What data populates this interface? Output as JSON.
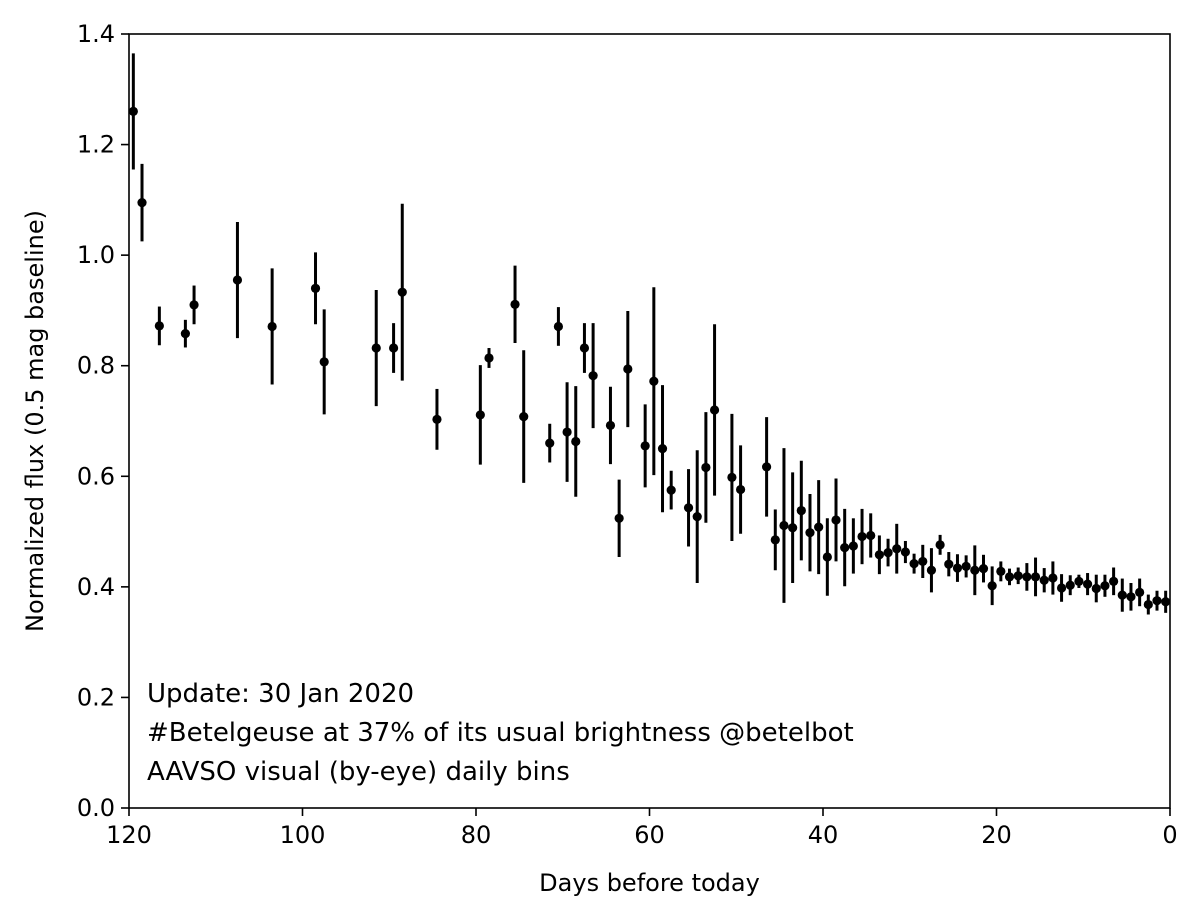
{
  "chart_data": {
    "type": "scatter",
    "title": "",
    "xlabel": "Days before today",
    "ylabel": "Normalized flux (0.5 mag baseline)",
    "xlim": [
      120,
      0
    ],
    "ylim": [
      0.0,
      1.4
    ],
    "xticks": [
      "120",
      "100",
      "80",
      "60",
      "40",
      "20",
      "0"
    ],
    "yticks": [
      "0.0",
      "0.2",
      "0.4",
      "0.6",
      "0.8",
      "1.0",
      "1.2",
      "1.4"
    ],
    "grid": false,
    "legend": "none",
    "marker_color": "#000000",
    "annotations": [
      "Update: 30 Jan 2020",
      "#Betelgeuse at 37% of its usual brightness @betelbot",
      "AAVSO visual (by-eye) daily bins"
    ],
    "series": [
      {
        "x": [
          119.5,
          118.5,
          116.5,
          113.5,
          112.5,
          107.5,
          103.5,
          98.5,
          97.5,
          91.5,
          89.5,
          88.5,
          84.5,
          79.5,
          78.5,
          75.5,
          74.5,
          71.5,
          70.5,
          69.5,
          68.5,
          67.5,
          66.5,
          64.5,
          63.5,
          62.5,
          60.5,
          59.5,
          58.5,
          57.5,
          55.5,
          54.5,
          53.5,
          52.5,
          50.5,
          49.5,
          46.5,
          45.5,
          44.5,
          43.5,
          42.5,
          41.5,
          40.5,
          39.5,
          38.5,
          37.5,
          36.5,
          35.5,
          34.5,
          33.5,
          32.5,
          31.5,
          30.5,
          29.5,
          28.5,
          27.5,
          26.5,
          25.5,
          24.5,
          23.5,
          22.5,
          21.5,
          20.5,
          19.5,
          18.5,
          17.5,
          16.5,
          15.5,
          14.5,
          13.5,
          12.5,
          11.5,
          10.5,
          9.5,
          8.5,
          7.5,
          6.5,
          5.5,
          4.5,
          3.5,
          2.5,
          1.5,
          0.5
        ],
        "y": [
          1.26,
          1.095,
          0.872,
          0.858,
          0.91,
          0.955,
          0.871,
          0.94,
          0.807,
          0.832,
          0.832,
          0.933,
          0.703,
          0.711,
          0.814,
          0.911,
          0.708,
          0.66,
          0.871,
          0.68,
          0.663,
          0.832,
          0.782,
          0.692,
          0.524,
          0.794,
          0.655,
          0.772,
          0.65,
          0.575,
          0.543,
          0.527,
          0.616,
          0.72,
          0.598,
          0.576,
          0.617,
          0.485,
          0.511,
          0.507,
          0.538,
          0.498,
          0.508,
          0.454,
          0.521,
          0.471,
          0.474,
          0.491,
          0.493,
          0.458,
          0.462,
          0.469,
          0.463,
          0.442,
          0.446,
          0.43,
          0.476,
          0.441,
          0.434,
          0.437,
          0.43,
          0.433,
          0.402,
          0.428,
          0.418,
          0.42,
          0.418,
          0.418,
          0.412,
          0.416,
          0.398,
          0.403,
          0.41,
          0.405,
          0.397,
          0.402,
          0.41,
          0.385,
          0.382,
          0.39,
          0.368,
          0.375,
          0.373
        ],
        "yerr": [
          0.105,
          0.07,
          0.035,
          0.025,
          0.035,
          0.105,
          0.105,
          0.065,
          0.095,
          0.105,
          0.045,
          0.16,
          0.055,
          0.09,
          0.018,
          0.07,
          0.12,
          0.035,
          0.035,
          0.09,
          0.1,
          0.045,
          0.095,
          0.07,
          0.07,
          0.105,
          0.075,
          0.17,
          0.115,
          0.035,
          0.07,
          0.12,
          0.1,
          0.155,
          0.115,
          0.08,
          0.09,
          0.055,
          0.14,
          0.1,
          0.09,
          0.07,
          0.085,
          0.07,
          0.075,
          0.07,
          0.05,
          0.05,
          0.04,
          0.035,
          0.025,
          0.045,
          0.02,
          0.018,
          0.03,
          0.04,
          0.018,
          0.022,
          0.025,
          0.02,
          0.045,
          0.025,
          0.035,
          0.018,
          0.015,
          0.015,
          0.025,
          0.035,
          0.022,
          0.03,
          0.025,
          0.018,
          0.012,
          0.02,
          0.025,
          0.02,
          0.025,
          0.03,
          0.025,
          0.025,
          0.018,
          0.018,
          0.02
        ]
      }
    ]
  }
}
